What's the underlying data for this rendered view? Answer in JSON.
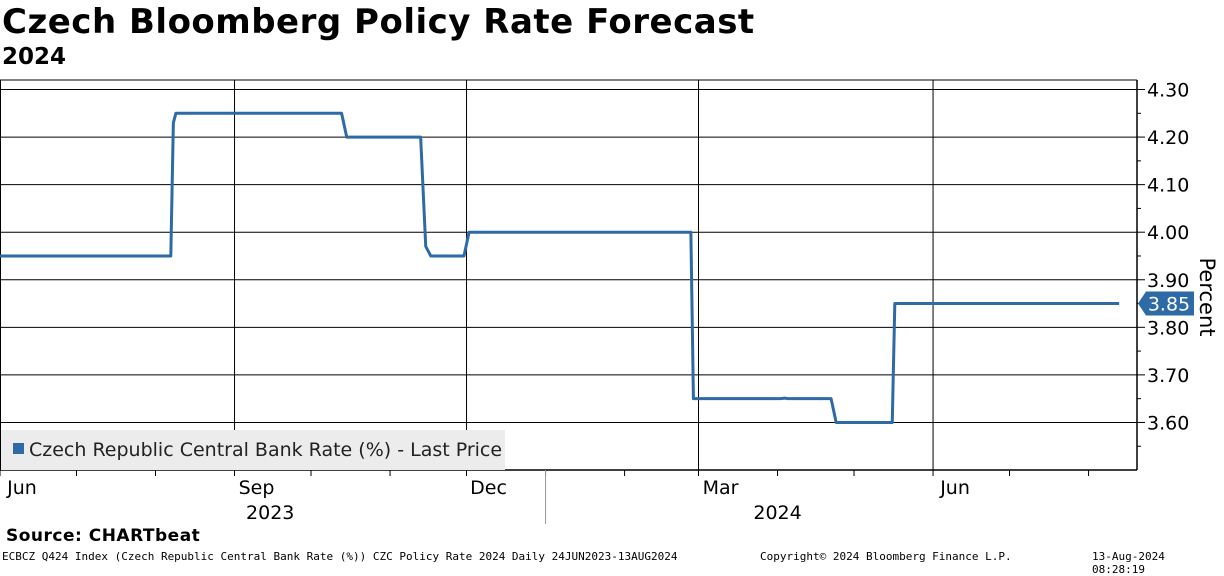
{
  "header": {
    "title": "Czech Bloomberg Policy Rate Forecast",
    "subtitle": "2024"
  },
  "chart_data": {
    "type": "line",
    "title": "Czech Bloomberg Policy Rate Forecast",
    "subtitle": "2024",
    "ylabel": "Percent",
    "ylim": [
      3.5,
      4.32
    ],
    "yticks": [
      3.6,
      3.7,
      3.8,
      3.9,
      4.0,
      4.1,
      4.2,
      4.3
    ],
    "ytick_labels": [
      "3.60",
      "3.70",
      "3.80",
      "3.90",
      "4.00",
      "4.10",
      "4.20",
      "4.30"
    ],
    "x_range": [
      "2023-06-01",
      "2024-08-20"
    ],
    "x_month_ticks": [
      {
        "date": "2023-06-01",
        "label": "Jun"
      },
      {
        "date": "2023-09-01",
        "label": "Sep"
      },
      {
        "date": "2023-12-01",
        "label": "Dec"
      },
      {
        "date": "2024-03-01",
        "label": "Mar"
      },
      {
        "date": "2024-06-01",
        "label": "Jun"
      }
    ],
    "x_year_labels": [
      {
        "center": "2023-09-15",
        "label": "2023"
      },
      {
        "center": "2024-04-01",
        "label": "2024"
      }
    ],
    "year_divider": "2024-01-01",
    "series": [
      {
        "name": "Czech Republic Central Bank Rate (%) - Last Price",
        "color": "#2e6aa6",
        "last_value": "3.85",
        "points": [
          {
            "x": "2023-06-01",
            "y": 3.95
          },
          {
            "x": "2023-08-07",
            "y": 3.95
          },
          {
            "x": "2023-08-08",
            "y": 4.23
          },
          {
            "x": "2023-08-09",
            "y": 4.25
          },
          {
            "x": "2023-10-13",
            "y": 4.25
          },
          {
            "x": "2023-10-15",
            "y": 4.2
          },
          {
            "x": "2023-11-13",
            "y": 4.2
          },
          {
            "x": "2023-11-15",
            "y": 3.97
          },
          {
            "x": "2023-11-17",
            "y": 3.95
          },
          {
            "x": "2023-11-30",
            "y": 3.95
          },
          {
            "x": "2023-12-02",
            "y": 4.0
          },
          {
            "x": "2024-02-27",
            "y": 4.0
          },
          {
            "x": "2024-02-28",
            "y": 3.65
          },
          {
            "x": "2024-04-02",
            "y": 3.65
          },
          {
            "x": "2024-04-04",
            "y": 3.651
          },
          {
            "x": "2024-04-05",
            "y": 3.65
          },
          {
            "x": "2024-04-22",
            "y": 3.65
          },
          {
            "x": "2024-04-24",
            "y": 3.6
          },
          {
            "x": "2024-05-16",
            "y": 3.6
          },
          {
            "x": "2024-05-17",
            "y": 3.85
          },
          {
            "x": "2024-08-13",
            "y": 3.85
          }
        ]
      }
    ]
  },
  "footer": {
    "source": "Source: CHARTbeat",
    "index_info": "ECBCZ Q424 Index (Czech Republic Central Bank Rate (%)) CZC Policy Rate 2024  Daily 24JUN2023-13AUG2024",
    "copyright": "Copyright© 2024 Bloomberg Finance L.P.",
    "timestamp": "13-Aug-2024 08:28:19"
  }
}
